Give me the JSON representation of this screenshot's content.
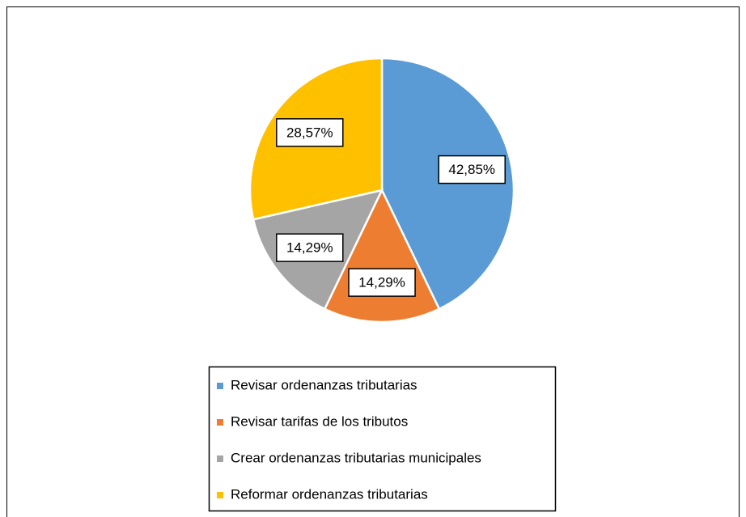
{
  "chart_data": {
    "type": "pie",
    "categories": [
      "Revisar ordenanzas tributarias",
      "Revisar tarifas de los tributos",
      "Crear ordenanzas tributarias municipales",
      "Reformar ordenanzas tributarias"
    ],
    "values": [
      42.85,
      14.29,
      14.29,
      28.57
    ],
    "value_labels": [
      "42,85%",
      "14,29%",
      "14,29%",
      "28,57%"
    ],
    "colors": [
      "#5b9bd5",
      "#ed7d31",
      "#a5a5a5",
      "#ffc000"
    ],
    "legend": "bottom"
  }
}
